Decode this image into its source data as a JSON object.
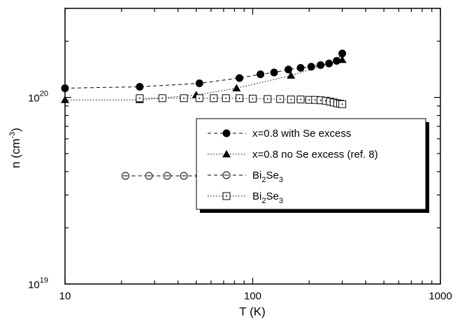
{
  "chart_data": {
    "type": "scatter",
    "xscale": "log",
    "yscale": "log",
    "xlim": [
      10,
      1000
    ],
    "ylim": [
      1e+19,
      3e+20
    ],
    "xlabel": "T (K)",
    "ylabel": {
      "base": "n (cm",
      "sup": "-3",
      "end": ")"
    },
    "x_ticks": [
      {
        "value": 10,
        "label": "10"
      },
      {
        "value": 100,
        "label": "100"
      },
      {
        "value": 1000,
        "label": "1000"
      }
    ],
    "y_ticks": [
      {
        "value": 1e+19,
        "base": "10",
        "sup": "19"
      },
      {
        "value": 1e+20,
        "base": "10",
        "sup": "20"
      }
    ],
    "grid": false,
    "legend_position": "right",
    "series": [
      {
        "id": "s1",
        "legend": {
          "text": "x=0.8 with Se excess"
        },
        "marker": "filled-circle",
        "line": "dashed",
        "x": [
          10,
          25,
          52,
          85,
          110,
          130,
          155,
          180,
          205,
          230,
          255,
          280,
          300
        ],
        "y": [
          1.12e+20,
          1.14e+20,
          1.19e+20,
          1.27e+20,
          1.33e+20,
          1.36e+20,
          1.41e+20,
          1.44e+20,
          1.46e+20,
          1.49e+20,
          1.52e+20,
          1.57e+20,
          1.72e+20
        ]
      },
      {
        "id": "s2",
        "legend": {
          "text": "x=0.8 no Se excess (ref. 8)"
        },
        "marker": "filled-triangle",
        "line": "dotted",
        "x": [
          10,
          25,
          50,
          82,
          160,
          300
        ],
        "y": [
          9.7e+19,
          9.7e+19,
          1.03e+20,
          1.12e+20,
          1.31e+20,
          1.59e+20
        ]
      },
      {
        "id": "s3",
        "legend": {
          "text": "Bi",
          "sub": "2",
          "text2": "Se",
          "sub2": "3"
        },
        "marker": "open-circle-bar",
        "line": "dashed",
        "x": [
          21,
          28,
          35,
          43,
          52,
          61,
          70,
          80,
          95,
          108,
          122,
          137,
          152,
          168,
          183,
          202,
          220,
          238,
          256,
          274,
          292,
          300
        ],
        "y": [
          3.8e+19,
          3.8e+19,
          3.8e+19,
          3.8e+19,
          3.8e+19,
          3.8e+19,
          3.8e+19,
          3.8e+19,
          3.8e+19,
          3.78e+19,
          3.78e+19,
          3.77e+19,
          3.77e+19,
          3.76e+19,
          3.76e+19,
          3.75e+19,
          3.74e+19,
          3.73e+19,
          3.72e+19,
          3.71e+19,
          3.7e+19,
          3.7e+19
        ]
      },
      {
        "id": "s4",
        "legend": {
          "text": "Bi",
          "sub": "2",
          "text2": "Se",
          "sub2": "3"
        },
        "marker": "open-square-dot",
        "line": "dotted",
        "x": [
          25,
          33,
          43,
          52,
          62,
          72,
          85,
          100,
          120,
          140,
          160,
          180,
          200,
          215,
          230,
          245,
          258,
          270,
          282,
          292,
          300
        ],
        "y": [
          9.9e+19,
          9.9e+19,
          9.9e+19,
          9.9e+19,
          9.9e+19,
          9.9e+19,
          9.9e+19,
          9.85e+19,
          9.8e+19,
          9.8e+19,
          9.75e+19,
          9.75e+19,
          9.7e+19,
          9.7e+19,
          9.65e+19,
          9.6e+19,
          9.5e+19,
          9.4e+19,
          9.3e+19,
          9.25e+19,
          9.2e+19
        ]
      }
    ]
  }
}
